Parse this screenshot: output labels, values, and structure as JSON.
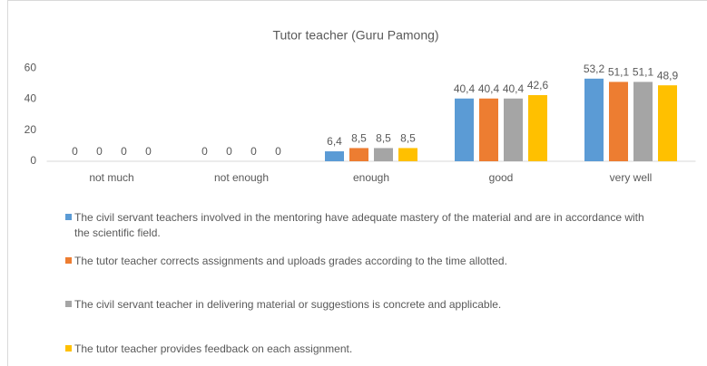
{
  "chart_data": {
    "type": "bar",
    "title": "Tutor teacher (Guru Pamong)",
    "categories": [
      "not much",
      "not enough",
      "enough",
      "good",
      "very well"
    ],
    "series": [
      {
        "name": "The civil servant teachers involved in the mentoring have adequate mastery of the material and are in accordance with the scientific field.",
        "color": "#5b9bd5",
        "values": [
          0,
          0,
          6.4,
          40.4,
          53.2
        ],
        "value_labels": [
          "0",
          "0",
          "6,4",
          "40,4",
          "53,2"
        ]
      },
      {
        "name": "The tutor teacher corrects assignments and uploads grades according to the time allotted.",
        "color": "#ed7d31",
        "values": [
          0,
          0,
          8.5,
          40.4,
          51.1
        ],
        "value_labels": [
          "0",
          "0",
          "8,5",
          "40,4",
          "51,1"
        ]
      },
      {
        "name": "The civil servant teacher in delivering material or suggestions is concrete and applicable.",
        "color": "#a5a5a5",
        "values": [
          0,
          0,
          8.5,
          40.4,
          51.1
        ],
        "value_labels": [
          "0",
          "0",
          "8,5",
          "40,4",
          "51,1"
        ]
      },
      {
        "name": "The tutor teacher provides feedback on each assignment.",
        "color": "#ffc000",
        "values": [
          0,
          0,
          8.5,
          42.6,
          48.9
        ],
        "value_labels": [
          "0",
          "0",
          "8,5",
          "42,6",
          "48,9"
        ]
      }
    ],
    "ylim": [
      0,
      70
    ],
    "yticks": [
      0,
      20,
      40,
      60
    ],
    "grid": false,
    "legend": "bottom"
  }
}
